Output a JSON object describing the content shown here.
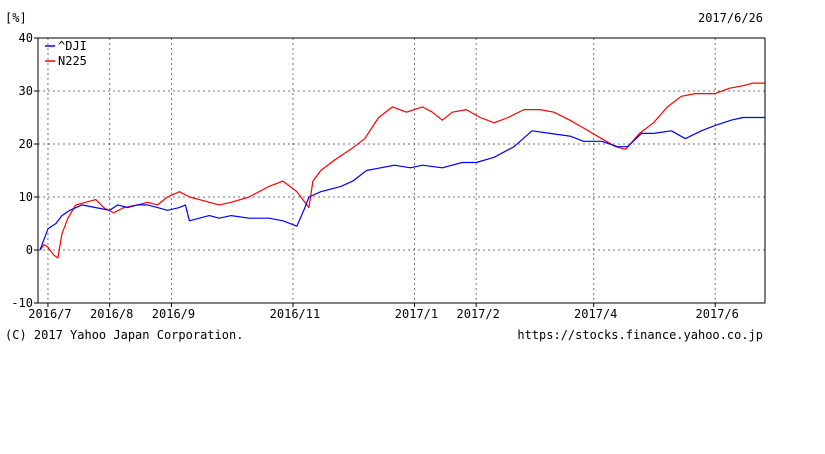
{
  "chart_data": {
    "type": "line",
    "unit_label": "[%]",
    "date_label": "2017/6/26",
    "ylim": [
      -10,
      40
    ],
    "yticks": [
      -10,
      0,
      10,
      20,
      30,
      40
    ],
    "ytick_labels": [
      "-10",
      "0",
      "10",
      "20",
      "30",
      "40"
    ],
    "x_range": [
      "2016-06-26",
      "2017-06-26"
    ],
    "xticks": [
      {
        "date": "2016-07-01",
        "label": "2016/7"
      },
      {
        "date": "2016-08-01",
        "label": "2016/8"
      },
      {
        "date": "2016-09-01",
        "label": "2016/9"
      },
      {
        "date": "2016-11-01",
        "label": "2016/11"
      },
      {
        "date": "2017-01-01",
        "label": "2017/1"
      },
      {
        "date": "2017-02-01",
        "label": "2017/2"
      },
      {
        "date": "2017-04-01",
        "label": "2017/4"
      },
      {
        "date": "2017-06-01",
        "label": "2017/6"
      }
    ],
    "grid": true,
    "legend_position": "top-left",
    "series": [
      {
        "name": "^DJI",
        "color": "#0000ff",
        "points": [
          [
            "2016-06-27",
            0
          ],
          [
            "2016-06-29",
            2
          ],
          [
            "2016-07-01",
            4
          ],
          [
            "2016-07-05",
            5
          ],
          [
            "2016-07-08",
            6.5
          ],
          [
            "2016-07-12",
            7.5
          ],
          [
            "2016-07-18",
            8.5
          ],
          [
            "2016-07-25",
            8
          ],
          [
            "2016-08-01",
            7.5
          ],
          [
            "2016-08-05",
            8.5
          ],
          [
            "2016-08-10",
            8
          ],
          [
            "2016-08-15",
            8.5
          ],
          [
            "2016-08-20",
            8.5
          ],
          [
            "2016-08-25",
            8
          ],
          [
            "2016-08-30",
            7.5
          ],
          [
            "2016-09-05",
            8
          ],
          [
            "2016-09-08",
            8.5
          ],
          [
            "2016-09-10",
            5.5
          ],
          [
            "2016-09-15",
            6
          ],
          [
            "2016-09-20",
            6.5
          ],
          [
            "2016-09-25",
            6
          ],
          [
            "2016-10-01",
            6.5
          ],
          [
            "2016-10-10",
            6
          ],
          [
            "2016-10-20",
            6
          ],
          [
            "2016-10-27",
            5.5
          ],
          [
            "2016-11-03",
            4.5
          ],
          [
            "2016-11-07",
            8
          ],
          [
            "2016-11-09",
            10
          ],
          [
            "2016-11-15",
            11
          ],
          [
            "2016-11-25",
            12
          ],
          [
            "2016-12-01",
            13
          ],
          [
            "2016-12-08",
            15
          ],
          [
            "2016-12-15",
            15.5
          ],
          [
            "2016-12-22",
            16
          ],
          [
            "2016-12-30",
            15.5
          ],
          [
            "2017-01-05",
            16
          ],
          [
            "2017-01-15",
            15.5
          ],
          [
            "2017-01-25",
            16.5
          ],
          [
            "2017-02-01",
            16.5
          ],
          [
            "2017-02-10",
            17.5
          ],
          [
            "2017-02-20",
            19.5
          ],
          [
            "2017-03-01",
            22.5
          ],
          [
            "2017-03-10",
            22
          ],
          [
            "2017-03-20",
            21.5
          ],
          [
            "2017-03-27",
            20.5
          ],
          [
            "2017-04-05",
            20.5
          ],
          [
            "2017-04-13",
            19.5
          ],
          [
            "2017-04-18",
            19.5
          ],
          [
            "2017-04-25",
            22
          ],
          [
            "2017-05-01",
            22
          ],
          [
            "2017-05-10",
            22.5
          ],
          [
            "2017-05-17",
            21
          ],
          [
            "2017-05-25",
            22.5
          ],
          [
            "2017-06-01",
            23.5
          ],
          [
            "2017-06-09",
            24.5
          ],
          [
            "2017-06-15",
            25
          ],
          [
            "2017-06-26",
            25
          ]
        ]
      },
      {
        "name": "N225",
        "color": "#ff0000",
        "points": [
          [
            "2016-06-27",
            0
          ],
          [
            "2016-06-29",
            1
          ],
          [
            "2016-07-01",
            0.5
          ],
          [
            "2016-07-04",
            -1
          ],
          [
            "2016-07-06",
            -1.5
          ],
          [
            "2016-07-08",
            3
          ],
          [
            "2016-07-11",
            6
          ],
          [
            "2016-07-15",
            8.5
          ],
          [
            "2016-07-20",
            9
          ],
          [
            "2016-07-25",
            9.5
          ],
          [
            "2016-07-29",
            8
          ],
          [
            "2016-08-03",
            7
          ],
          [
            "2016-08-08",
            8
          ],
          [
            "2016-08-15",
            8.5
          ],
          [
            "2016-08-20",
            9
          ],
          [
            "2016-08-25",
            8.5
          ],
          [
            "2016-08-30",
            10
          ],
          [
            "2016-09-05",
            11
          ],
          [
            "2016-09-10",
            10
          ],
          [
            "2016-09-15",
            9.5
          ],
          [
            "2016-09-20",
            9
          ],
          [
            "2016-09-25",
            8.5
          ],
          [
            "2016-10-01",
            9
          ],
          [
            "2016-10-10",
            10
          ],
          [
            "2016-10-20",
            12
          ],
          [
            "2016-10-27",
            13
          ],
          [
            "2016-11-03",
            11
          ],
          [
            "2016-11-06",
            9.5
          ],
          [
            "2016-11-09",
            8
          ],
          [
            "2016-11-11",
            13
          ],
          [
            "2016-11-15",
            15
          ],
          [
            "2016-11-22",
            17
          ],
          [
            "2016-11-30",
            19
          ],
          [
            "2016-12-07",
            21
          ],
          [
            "2016-12-14",
            25
          ],
          [
            "2016-12-21",
            27
          ],
          [
            "2016-12-28",
            26
          ],
          [
            "2017-01-05",
            27
          ],
          [
            "2017-01-10",
            26
          ],
          [
            "2017-01-15",
            24.5
          ],
          [
            "2017-01-20",
            26
          ],
          [
            "2017-01-27",
            26.5
          ],
          [
            "2017-02-03",
            25
          ],
          [
            "2017-02-10",
            24
          ],
          [
            "2017-02-17",
            25
          ],
          [
            "2017-02-25",
            26.5
          ],
          [
            "2017-03-05",
            26.5
          ],
          [
            "2017-03-12",
            26
          ],
          [
            "2017-03-20",
            24.5
          ],
          [
            "2017-03-27",
            23
          ],
          [
            "2017-04-05",
            21
          ],
          [
            "2017-04-12",
            19.5
          ],
          [
            "2017-04-17",
            19
          ],
          [
            "2017-04-24",
            22
          ],
          [
            "2017-05-01",
            24
          ],
          [
            "2017-05-08",
            27
          ],
          [
            "2017-05-15",
            29
          ],
          [
            "2017-05-22",
            29.5
          ],
          [
            "2017-06-01",
            29.5
          ],
          [
            "2017-06-08",
            30.5
          ],
          [
            "2017-06-15",
            31
          ],
          [
            "2017-06-20",
            31.5
          ],
          [
            "2017-06-26",
            31.5
          ]
        ]
      }
    ]
  },
  "footer": {
    "copyright": "(C) 2017 Yahoo Japan Corporation.",
    "url": "https://stocks.finance.yahoo.co.jp"
  }
}
